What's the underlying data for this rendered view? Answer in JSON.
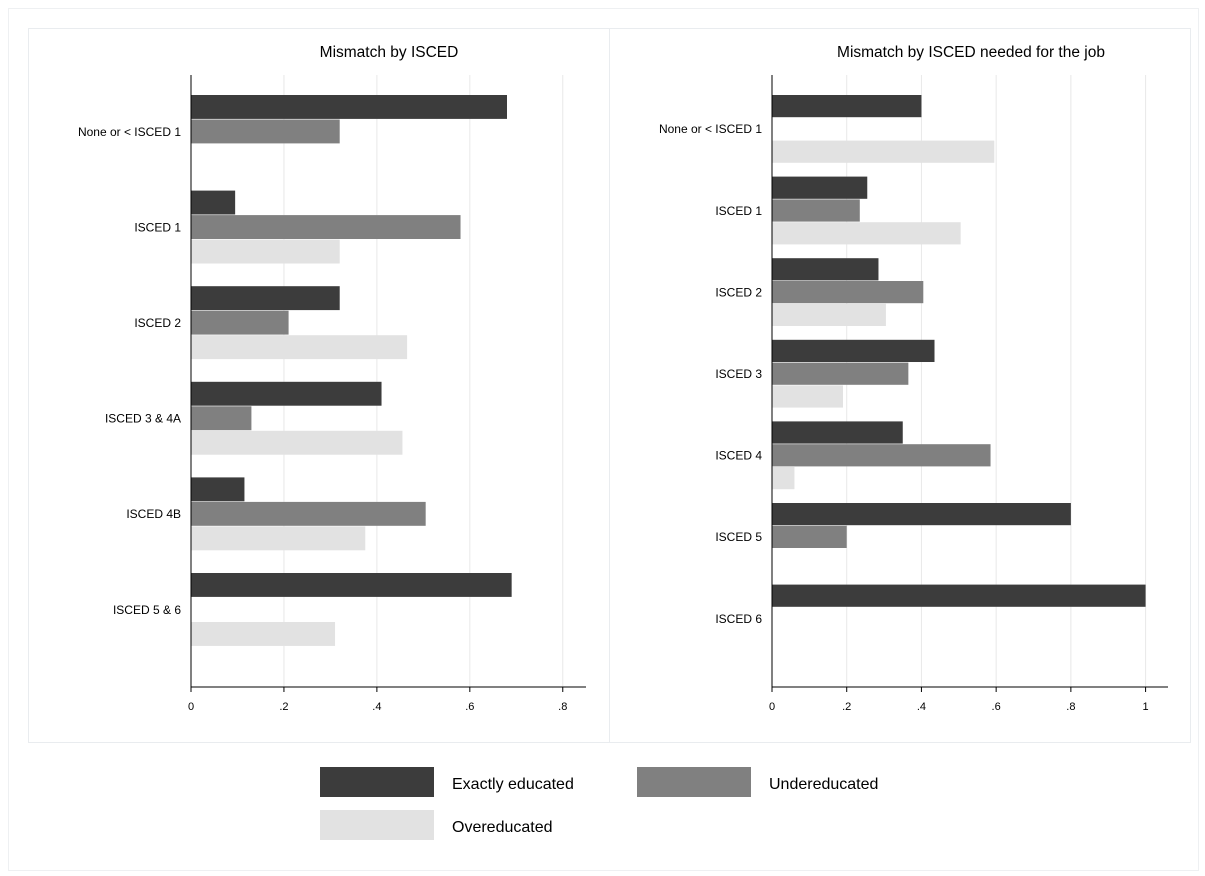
{
  "colors": {
    "exact": "#3c3c3c",
    "under": "#808080",
    "over": "#e2e2e2",
    "grid": "#e8e8e8",
    "axis": "#000000",
    "border": "#e9ecef"
  },
  "legend": {
    "items": [
      {
        "key": "exact",
        "label": "Exactly educated"
      },
      {
        "key": "under",
        "label": "Undereducated"
      },
      {
        "key": "over",
        "label": "Overeducated"
      }
    ]
  },
  "chart_data": [
    {
      "type": "bar",
      "orientation": "horizontal",
      "title": "Mismatch by ISCED",
      "categories": [
        "None or < ISCED 1",
        "ISCED 1",
        "ISCED 2",
        "ISCED 3 & 4A",
        "ISCED 4B",
        "ISCED 5 & 6"
      ],
      "series": [
        {
          "key": "exact",
          "name": "Exactly educated",
          "values": [
            0.68,
            0.095,
            0.32,
            0.41,
            0.115,
            0.69
          ]
        },
        {
          "key": "under",
          "name": "Undereducated",
          "values": [
            0.32,
            0.58,
            0.21,
            0.13,
            0.505,
            0
          ]
        },
        {
          "key": "over",
          "name": "Overeducated",
          "values": [
            0,
            0.32,
            0.465,
            0.455,
            0.375,
            0.31
          ]
        }
      ],
      "xlim": [
        0,
        0.85
      ],
      "xticks": [
        0,
        0.2,
        0.4,
        0.6,
        0.8
      ],
      "xtick_labels": [
        "0",
        ".2",
        ".4",
        ".6",
        ".8"
      ],
      "grid": true,
      "legend_position": "bottom"
    },
    {
      "type": "bar",
      "orientation": "horizontal",
      "title": "Mismatch by ISCED needed for the job",
      "categories": [
        "None or < ISCED 1",
        "ISCED 1",
        "ISCED 2",
        "ISCED 3",
        "ISCED 4",
        "ISCED 5",
        "ISCED 6"
      ],
      "series": [
        {
          "key": "exact",
          "name": "Exactly educated",
          "values": [
            0.4,
            0.255,
            0.285,
            0.435,
            0.35,
            0.8,
            1.0
          ]
        },
        {
          "key": "under",
          "name": "Undereducated",
          "values": [
            0,
            0.235,
            0.405,
            0.365,
            0.585,
            0.2,
            0
          ]
        },
        {
          "key": "over",
          "name": "Overeducated",
          "values": [
            0.595,
            0.505,
            0.305,
            0.19,
            0.06,
            0,
            0
          ]
        }
      ],
      "xlim": [
        0,
        1.06
      ],
      "xticks": [
        0,
        0.2,
        0.4,
        0.6,
        0.8,
        1.0
      ],
      "xtick_labels": [
        "0",
        ".2",
        ".4",
        ".6",
        ".8",
        "1"
      ],
      "grid": true,
      "legend_position": "bottom"
    }
  ]
}
